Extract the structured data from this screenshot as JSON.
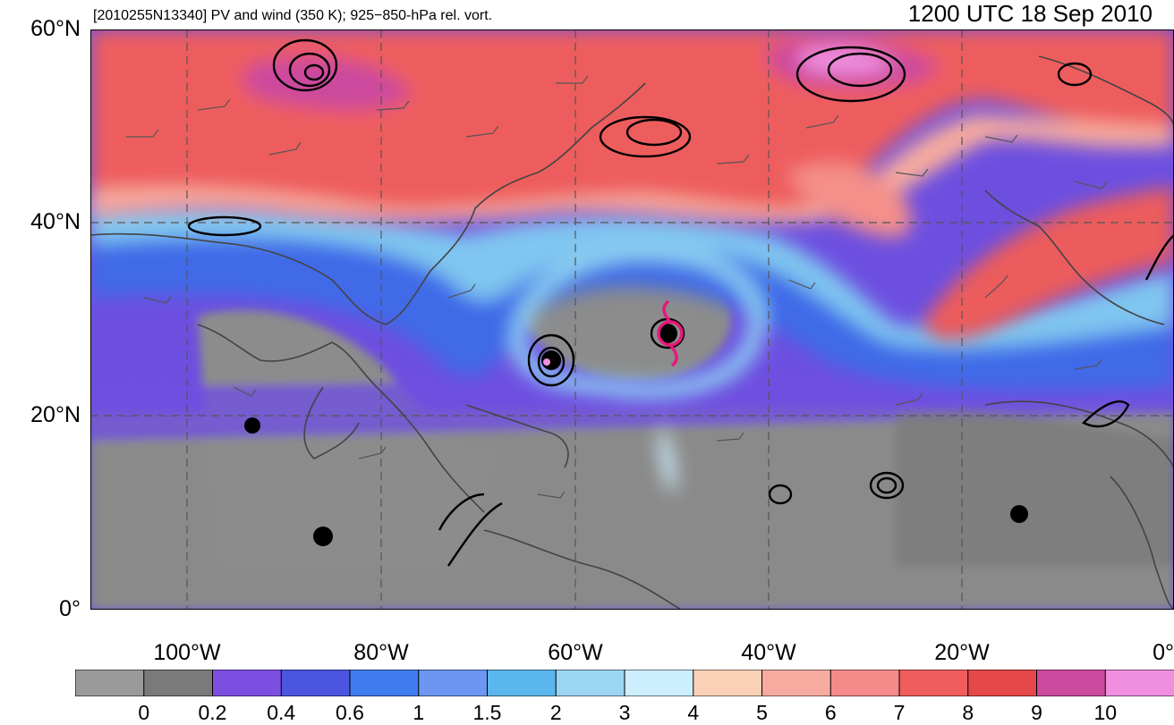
{
  "header": {
    "left_title": "[2010255N13340] PV and wind (350 K); 925−850-hPa rel. vort.",
    "right_title": "1200 UTC 18 Sep 2010"
  },
  "axes": {
    "lat_labels": [
      "60°N",
      "40°N",
      "20°N",
      "0°"
    ],
    "lon_labels": [
      "100°W",
      "80°W",
      "60°W",
      "40°W",
      "20°W",
      "0°"
    ],
    "lon_range": [
      -110,
      2
    ],
    "lat_range": [
      0,
      60
    ]
  },
  "colorbar": {
    "labels": [
      "0",
      "0.2",
      "0.4",
      "0.6",
      "1",
      "1.5",
      "2",
      "3",
      "4",
      "5",
      "6",
      "7",
      "8",
      "9",
      "10"
    ],
    "colors": [
      "#9a9a9a",
      "#7a7a7a",
      "#7d4fe0",
      "#4b55e0",
      "#3f7cf0",
      "#6d96f2",
      "#5ab6ec",
      "#9bd5f3",
      "#cdeefc",
      "#fad1b6",
      "#f7aba0",
      "#f58a8a",
      "#f15d5d",
      "#e54848",
      "#cc4a9e",
      "#f08fe0"
    ]
  },
  "storm_markers": {
    "colors": {
      "vortex": "#000000",
      "symbol": "#e8177b"
    }
  }
}
